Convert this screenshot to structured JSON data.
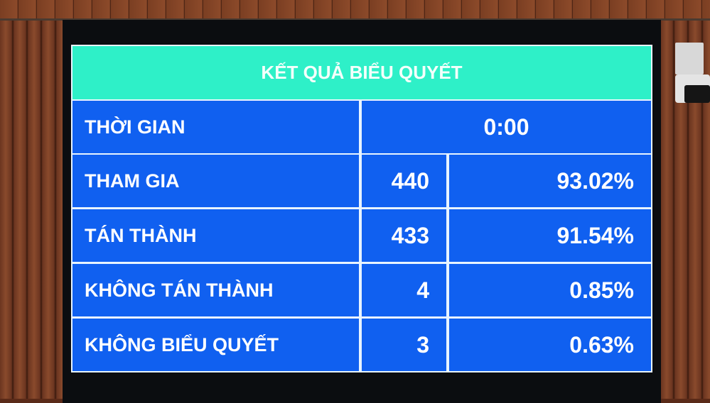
{
  "board": {
    "title": "KẾT QUẢ BIỂU QUYẾT",
    "time": {
      "label": "THỜI GIAN",
      "value": "0:00"
    },
    "rows": [
      {
        "label": "THAM GIA",
        "count": "440",
        "percent": "93.02%"
      },
      {
        "label": "TÁN THÀNH",
        "count": "433",
        "percent": "91.54%"
      },
      {
        "label": "KHÔNG TÁN THÀNH",
        "count": "4",
        "percent": "0.85%"
      },
      {
        "label": "KHÔNG BIỂU QUYẾT",
        "count": "3",
        "percent": "0.63%"
      }
    ]
  },
  "colors": {
    "header": "#2ef0c8",
    "cells": "#1060f0",
    "text": "#ffffff"
  }
}
